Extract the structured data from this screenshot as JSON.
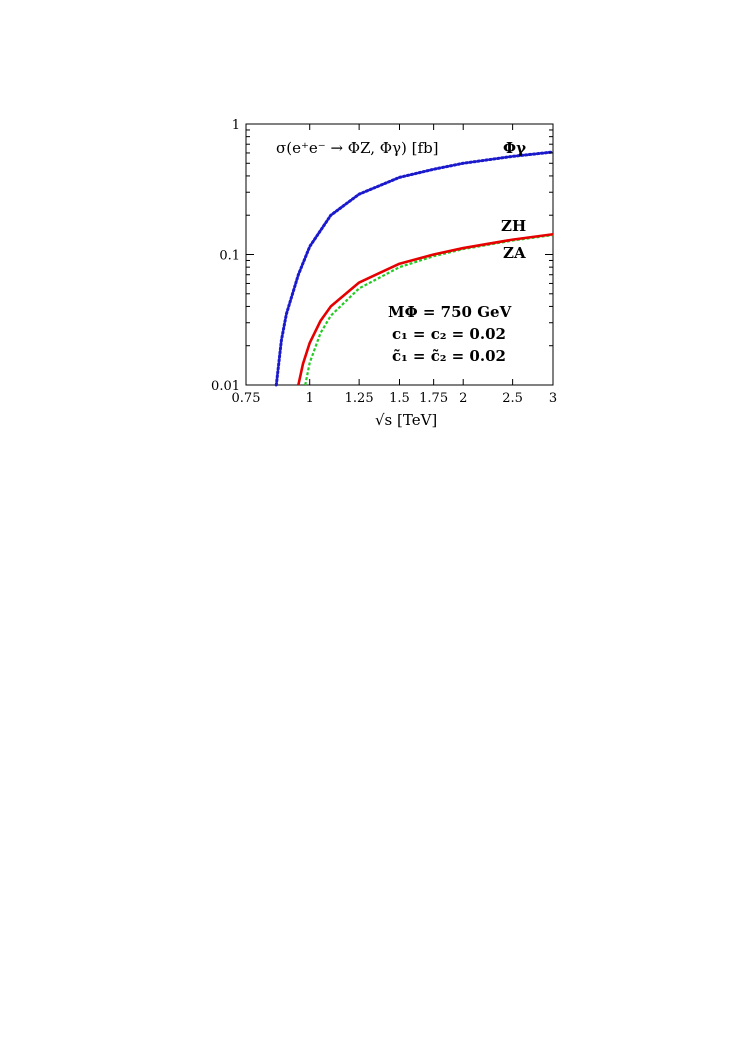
{
  "chart_data": {
    "type": "line",
    "title": "σ(e⁺e⁻ → ΦZ, Φγ) [fb]",
    "xlabel": "√s [TeV]",
    "ylabel": "",
    "x_scale": "log",
    "y_scale": "log",
    "xlim": [
      0.75,
      3
    ],
    "ylim": [
      0.01,
      1
    ],
    "x_ticks": [
      {
        "value": 0.75,
        "label": "0.75"
      },
      {
        "value": 1,
        "label": "1"
      },
      {
        "value": 1.25,
        "label": "1.25"
      },
      {
        "value": 1.5,
        "label": "1.5"
      },
      {
        "value": 1.75,
        "label": "1.75"
      },
      {
        "value": 2,
        "label": "2"
      },
      {
        "value": 2.5,
        "label": "2.5"
      },
      {
        "value": 3,
        "label": "3"
      }
    ],
    "y_ticks": [
      {
        "value": 0.01,
        "label": "0.01"
      },
      {
        "value": 0.1,
        "label": "0.1"
      },
      {
        "value": 1,
        "label": "1"
      }
    ],
    "grid": false,
    "series": [
      {
        "name": "Φγ",
        "color": "#1a1acc",
        "style": "dotted",
        "x": [
          0.86,
          0.88,
          0.9,
          0.95,
          1.0,
          1.1,
          1.25,
          1.5,
          1.75,
          2.0,
          2.5,
          3.0
        ],
        "y": [
          0.01,
          0.022,
          0.035,
          0.07,
          0.115,
          0.2,
          0.29,
          0.39,
          0.45,
          0.5,
          0.565,
          0.61
        ]
      },
      {
        "name": "ZH",
        "color": "#e60000",
        "style": "solid",
        "x": [
          0.95,
          0.97,
          1.0,
          1.05,
          1.1,
          1.25,
          1.5,
          1.75,
          2.0,
          2.5,
          3.0
        ],
        "y": [
          0.01,
          0.0145,
          0.021,
          0.031,
          0.04,
          0.061,
          0.085,
          0.1,
          0.112,
          0.13,
          0.143
        ]
      },
      {
        "name": "ZA",
        "color": "#22cc22",
        "style": "dashed",
        "x": [
          0.98,
          1.0,
          1.05,
          1.1,
          1.25,
          1.5,
          1.75,
          2.0,
          2.5,
          3.0
        ],
        "y": [
          0.01,
          0.0148,
          0.025,
          0.034,
          0.055,
          0.08,
          0.097,
          0.11,
          0.128,
          0.141
        ]
      }
    ],
    "annotations": {
      "phigamma": "Φγ",
      "zh": "ZH",
      "za": "ZA",
      "mass": "MΦ = 750 GeV",
      "c12": "c₁ = c₂ = 0.02",
      "ctilde": "c̃₁ = c̃₂ = 0.02"
    }
  }
}
